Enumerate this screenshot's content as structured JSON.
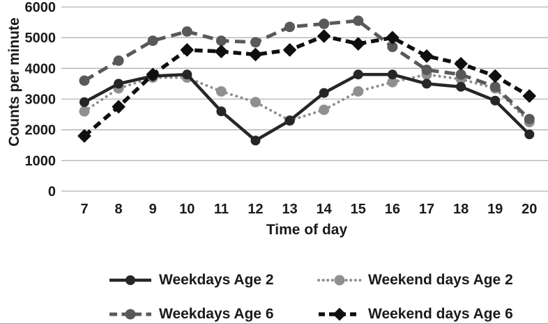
{
  "figure": {
    "y_axis_title": "Counts per minute",
    "x_axis_title": "Time of day"
  },
  "chart_data": {
    "type": "line",
    "title": "",
    "xlabel": "Time of day",
    "ylabel": "Counts per minute",
    "categories": [
      "7",
      "8",
      "9",
      "10",
      "11",
      "12",
      "13",
      "14",
      "15",
      "16",
      "17",
      "18",
      "19",
      "20"
    ],
    "ylim": [
      0,
      6000
    ],
    "yticks": [
      0,
      1000,
      2000,
      3000,
      4000,
      5000,
      6000
    ],
    "grid": true,
    "legend_position": "bottom",
    "colors": {
      "grid_line": "#b2b2b2",
      "text": "#1a1a1a",
      "series_solid_black": "#262626",
      "series_dotted_gray": "#8f8f8f",
      "series_dashed_gray": "#595959",
      "series_dashed_black": "#0f0f0f"
    },
    "series": [
      {
        "name": "Weekdays Age 2",
        "color": "#262626",
        "line_style": "solid",
        "marker": "circle",
        "values": [
          2900,
          3500,
          3750,
          3800,
          2600,
          1650,
          2300,
          3200,
          3800,
          3800,
          3500,
          3400,
          2950,
          1850
        ]
      },
      {
        "name": "Weekend days Age 2",
        "color": "#8f8f8f",
        "line_style": "dotted",
        "marker": "circle",
        "values": [
          2600,
          3350,
          3700,
          3700,
          3250,
          2900,
          2300,
          2650,
          3250,
          3550,
          3800,
          3650,
          3350,
          2250
        ]
      },
      {
        "name": "Weekdays Age 6",
        "color": "#595959",
        "line_style": "dashed",
        "marker": "circle",
        "values": [
          3600,
          4250,
          4900,
          5200,
          4900,
          4850,
          5350,
          5450,
          5550,
          4700,
          3950,
          3800,
          3400,
          2350
        ]
      },
      {
        "name": "Weekend days Age 6",
        "color": "#0f0f0f",
        "line_style": "dashed",
        "marker": "diamond",
        "values": [
          1800,
          2750,
          3800,
          4600,
          4550,
          4450,
          4600,
          5050,
          4800,
          5000,
          4400,
          4150,
          3750,
          3100
        ]
      }
    ]
  }
}
